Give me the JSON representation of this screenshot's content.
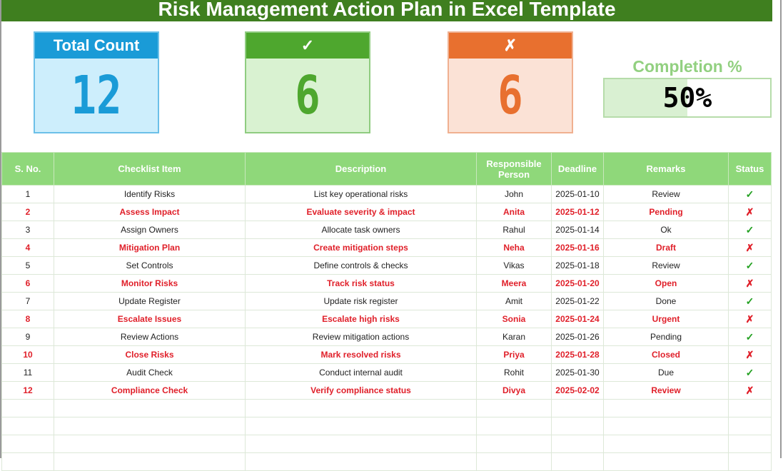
{
  "title": "Risk Management Action Plan in Excel Template",
  "cards": {
    "total": {
      "label": "Total Count",
      "value": "12",
      "color": "#1a9bd7"
    },
    "done": {
      "label": "✓",
      "value": "6",
      "color": "#4ea72e"
    },
    "pending": {
      "label": "✗",
      "value": "6",
      "color": "#e8702f"
    }
  },
  "completion": {
    "label": "Completion %",
    "value": "50%",
    "fraction": 0.5
  },
  "table": {
    "headers": [
      "S. No.",
      "Checklist Item",
      "Description",
      "Responsible Person",
      "Deadline",
      "Remarks",
      "Status"
    ],
    "rows": [
      [
        "1",
        "Identify Risks",
        "List key operational risks",
        "John",
        "2025-01-10",
        "Review",
        "✓"
      ],
      [
        "2",
        "Assess Impact",
        "Evaluate severity & impact",
        "Anita",
        "2025-01-12",
        "Pending",
        "✗"
      ],
      [
        "3",
        "Assign Owners",
        "Allocate task owners",
        "Rahul",
        "2025-01-14",
        "Ok",
        "✓"
      ],
      [
        "4",
        "Mitigation Plan",
        "Create mitigation steps",
        "Neha",
        "2025-01-16",
        "Draft",
        "✗"
      ],
      [
        "5",
        "Set Controls",
        "Define controls & checks",
        "Vikas",
        "2025-01-18",
        "Review",
        "✓"
      ],
      [
        "6",
        "Monitor Risks",
        "Track risk status",
        "Meera",
        "2025-01-20",
        "Open",
        "✗"
      ],
      [
        "7",
        "Update Register",
        "Update risk register",
        "Amit",
        "2025-01-22",
        "Done",
        "✓"
      ],
      [
        "8",
        "Escalate Issues",
        "Escalate high risks",
        "Sonia",
        "2025-01-24",
        "Urgent",
        "✗"
      ],
      [
        "9",
        "Review Actions",
        "Review mitigation actions",
        "Karan",
        "2025-01-26",
        "Pending",
        "✓"
      ],
      [
        "10",
        "Close Risks",
        "Mark resolved risks",
        "Priya",
        "2025-01-28",
        "Closed",
        "✗"
      ],
      [
        "11",
        "Audit Check",
        "Conduct internal audit",
        "Rohit",
        "2025-01-30",
        "Due",
        "✓"
      ],
      [
        "12",
        "Compliance Check",
        "Verify compliance status",
        "Divya",
        "2025-02-02",
        "Review",
        "✗"
      ]
    ]
  }
}
